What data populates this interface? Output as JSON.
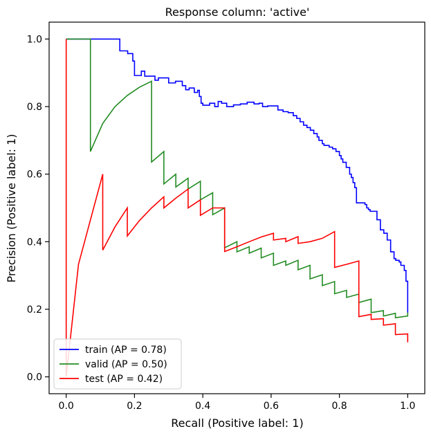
{
  "chart_data": {
    "type": "line",
    "title": "Response column: 'active'",
    "xlabel": "Recall (Positive label: 1)",
    "ylabel": "Precision (Positive label: 1)",
    "xlim": [
      -0.05,
      1.05
    ],
    "ylim": [
      -0.05,
      1.05
    ],
    "xticks": [
      0.0,
      0.2,
      0.4,
      0.6,
      0.8,
      1.0
    ],
    "yticks": [
      0.0,
      0.2,
      0.4,
      0.6,
      0.8,
      1.0
    ],
    "xtick_labels": [
      "0.0",
      "0.2",
      "0.4",
      "0.6",
      "0.8",
      "1.0"
    ],
    "ytick_labels": [
      "0.0",
      "0.2",
      "0.4",
      "0.6",
      "0.8",
      "1.0"
    ],
    "grid": false,
    "legend_position": "lower-left",
    "series": [
      {
        "name": "train (AP = 0.78)",
        "color": "#0000ff",
        "points": [
          [
            0.0,
            1.0
          ],
          [
            0.157,
            1.0
          ],
          [
            0.157,
            0.965
          ],
          [
            0.18,
            0.965
          ],
          [
            0.18,
            0.957
          ],
          [
            0.195,
            0.957
          ],
          [
            0.195,
            0.935
          ],
          [
            0.2,
            0.935
          ],
          [
            0.2,
            0.892
          ],
          [
            0.22,
            0.892
          ],
          [
            0.22,
            0.905
          ],
          [
            0.23,
            0.905
          ],
          [
            0.23,
            0.89
          ],
          [
            0.26,
            0.89
          ],
          [
            0.26,
            0.878
          ],
          [
            0.27,
            0.878
          ],
          [
            0.27,
            0.885
          ],
          [
            0.3,
            0.885
          ],
          [
            0.3,
            0.87
          ],
          [
            0.32,
            0.87
          ],
          [
            0.32,
            0.875
          ],
          [
            0.34,
            0.875
          ],
          [
            0.34,
            0.862
          ],
          [
            0.35,
            0.862
          ],
          [
            0.35,
            0.85
          ],
          [
            0.36,
            0.85
          ],
          [
            0.36,
            0.855
          ],
          [
            0.375,
            0.855
          ],
          [
            0.375,
            0.842
          ],
          [
            0.385,
            0.842
          ],
          [
            0.385,
            0.848
          ],
          [
            0.39,
            0.848
          ],
          [
            0.39,
            0.83
          ],
          [
            0.395,
            0.83
          ],
          [
            0.395,
            0.81
          ],
          [
            0.4,
            0.81
          ],
          [
            0.4,
            0.804
          ],
          [
            0.42,
            0.804
          ],
          [
            0.42,
            0.81
          ],
          [
            0.435,
            0.81
          ],
          [
            0.435,
            0.8
          ],
          [
            0.445,
            0.8
          ],
          [
            0.445,
            0.815
          ],
          [
            0.455,
            0.815
          ],
          [
            0.455,
            0.81
          ],
          [
            0.47,
            0.81
          ],
          [
            0.47,
            0.8
          ],
          [
            0.49,
            0.8
          ],
          [
            0.49,
            0.805
          ],
          [
            0.51,
            0.805
          ],
          [
            0.51,
            0.808
          ],
          [
            0.53,
            0.808
          ],
          [
            0.53,
            0.813
          ],
          [
            0.55,
            0.813
          ],
          [
            0.55,
            0.808
          ],
          [
            0.565,
            0.808
          ],
          [
            0.565,
            0.81
          ],
          [
            0.575,
            0.81
          ],
          [
            0.575,
            0.8
          ],
          [
            0.59,
            0.8
          ],
          [
            0.59,
            0.802
          ],
          [
            0.62,
            0.802
          ],
          [
            0.62,
            0.79
          ],
          [
            0.635,
            0.79
          ],
          [
            0.635,
            0.785
          ],
          [
            0.65,
            0.785
          ],
          [
            0.65,
            0.782
          ],
          [
            0.665,
            0.782
          ],
          [
            0.665,
            0.773
          ],
          [
            0.675,
            0.773
          ],
          [
            0.675,
            0.765
          ],
          [
            0.685,
            0.765
          ],
          [
            0.685,
            0.755
          ],
          [
            0.695,
            0.755
          ],
          [
            0.695,
            0.745
          ],
          [
            0.705,
            0.745
          ],
          [
            0.705,
            0.738
          ],
          [
            0.715,
            0.738
          ],
          [
            0.715,
            0.73
          ],
          [
            0.725,
            0.73
          ],
          [
            0.725,
            0.72
          ],
          [
            0.735,
            0.72
          ],
          [
            0.735,
            0.71
          ],
          [
            0.74,
            0.71
          ],
          [
            0.74,
            0.7
          ],
          [
            0.75,
            0.7
          ],
          [
            0.75,
            0.69
          ],
          [
            0.755,
            0.69
          ],
          [
            0.755,
            0.685
          ],
          [
            0.77,
            0.685
          ],
          [
            0.77,
            0.68
          ],
          [
            0.78,
            0.68
          ],
          [
            0.78,
            0.675
          ],
          [
            0.79,
            0.675
          ],
          [
            0.79,
            0.667
          ],
          [
            0.8,
            0.667
          ],
          [
            0.8,
            0.655
          ],
          [
            0.805,
            0.655
          ],
          [
            0.805,
            0.645
          ],
          [
            0.81,
            0.645
          ],
          [
            0.81,
            0.635
          ],
          [
            0.82,
            0.635
          ],
          [
            0.82,
            0.62
          ],
          [
            0.83,
            0.62
          ],
          [
            0.83,
            0.6
          ],
          [
            0.835,
            0.6
          ],
          [
            0.835,
            0.59
          ],
          [
            0.84,
            0.59
          ],
          [
            0.84,
            0.575
          ],
          [
            0.845,
            0.575
          ],
          [
            0.845,
            0.56
          ],
          [
            0.85,
            0.56
          ],
          [
            0.85,
            0.515
          ],
          [
            0.875,
            0.515
          ],
          [
            0.875,
            0.51
          ],
          [
            0.88,
            0.51
          ],
          [
            0.88,
            0.5
          ],
          [
            0.885,
            0.5
          ],
          [
            0.885,
            0.495
          ],
          [
            0.89,
            0.495
          ],
          [
            0.89,
            0.49
          ],
          [
            0.91,
            0.49
          ],
          [
            0.91,
            0.465
          ],
          [
            0.92,
            0.465
          ],
          [
            0.92,
            0.435
          ],
          [
            0.93,
            0.435
          ],
          [
            0.93,
            0.425
          ],
          [
            0.94,
            0.425
          ],
          [
            0.94,
            0.405
          ],
          [
            0.95,
            0.405
          ],
          [
            0.95,
            0.37
          ],
          [
            0.96,
            0.37
          ],
          [
            0.96,
            0.35
          ],
          [
            0.965,
            0.35
          ],
          [
            0.965,
            0.345
          ],
          [
            0.975,
            0.345
          ],
          [
            0.975,
            0.34
          ],
          [
            0.98,
            0.34
          ],
          [
            0.98,
            0.33
          ],
          [
            0.99,
            0.33
          ],
          [
            0.99,
            0.315
          ],
          [
            0.995,
            0.315
          ],
          [
            0.995,
            0.283
          ],
          [
            1.0,
            0.283
          ],
          [
            1.0,
            0.19
          ]
        ]
      },
      {
        "name": "valid (AP = 0.50)",
        "color": "#228b22",
        "points": [
          [
            0.0,
            1.0
          ],
          [
            0.071,
            1.0
          ],
          [
            0.071,
            0.667
          ],
          [
            0.107,
            0.75
          ],
          [
            0.143,
            0.8
          ],
          [
            0.179,
            0.833
          ],
          [
            0.214,
            0.857
          ],
          [
            0.25,
            0.875
          ],
          [
            0.25,
            0.636
          ],
          [
            0.286,
            0.667
          ],
          [
            0.286,
            0.571
          ],
          [
            0.321,
            0.6
          ],
          [
            0.321,
            0.562
          ],
          [
            0.357,
            0.588
          ],
          [
            0.357,
            0.556
          ],
          [
            0.393,
            0.579
          ],
          [
            0.393,
            0.524
          ],
          [
            0.429,
            0.545
          ],
          [
            0.429,
            0.48
          ],
          [
            0.464,
            0.5
          ],
          [
            0.464,
            0.382
          ],
          [
            0.5,
            0.4
          ],
          [
            0.5,
            0.37
          ],
          [
            0.536,
            0.385
          ],
          [
            0.536,
            0.366
          ],
          [
            0.571,
            0.381
          ],
          [
            0.571,
            0.352
          ],
          [
            0.607,
            0.366
          ],
          [
            0.607,
            0.33
          ],
          [
            0.643,
            0.343
          ],
          [
            0.643,
            0.33
          ],
          [
            0.679,
            0.345
          ],
          [
            0.679,
            0.317
          ],
          [
            0.714,
            0.33
          ],
          [
            0.714,
            0.29
          ],
          [
            0.75,
            0.302
          ],
          [
            0.75,
            0.27
          ],
          [
            0.786,
            0.282
          ],
          [
            0.786,
            0.246
          ],
          [
            0.821,
            0.256
          ],
          [
            0.821,
            0.235
          ],
          [
            0.857,
            0.245
          ],
          [
            0.857,
            0.22
          ],
          [
            0.893,
            0.23
          ],
          [
            0.893,
            0.19
          ],
          [
            0.929,
            0.196
          ],
          [
            0.929,
            0.18
          ],
          [
            0.964,
            0.188
          ],
          [
            0.964,
            0.175
          ],
          [
            1.0,
            0.18
          ],
          [
            1.0,
            0.19
          ]
        ]
      },
      {
        "name": "test (AP = 0.42)",
        "color": "#ff0000",
        "points": [
          [
            0.0,
            0.0
          ],
          [
            0.0,
            1.0
          ],
          [
            0.0,
            0.0
          ],
          [
            0.036,
            0.333
          ],
          [
            0.107,
            0.6
          ],
          [
            0.107,
            0.375
          ],
          [
            0.143,
            0.444
          ],
          [
            0.179,
            0.5
          ],
          [
            0.179,
            0.417
          ],
          [
            0.214,
            0.462
          ],
          [
            0.25,
            0.5
          ],
          [
            0.286,
            0.533
          ],
          [
            0.286,
            0.5
          ],
          [
            0.321,
            0.529
          ],
          [
            0.357,
            0.556
          ],
          [
            0.357,
            0.5
          ],
          [
            0.393,
            0.524
          ],
          [
            0.393,
            0.478
          ],
          [
            0.429,
            0.5
          ],
          [
            0.464,
            0.5
          ],
          [
            0.464,
            0.371
          ],
          [
            0.5,
            0.385
          ],
          [
            0.536,
            0.4
          ],
          [
            0.571,
            0.414
          ],
          [
            0.607,
            0.425
          ],
          [
            0.607,
            0.405
          ],
          [
            0.643,
            0.41
          ],
          [
            0.643,
            0.4
          ],
          [
            0.679,
            0.415
          ],
          [
            0.679,
            0.395
          ],
          [
            0.714,
            0.4
          ],
          [
            0.75,
            0.41
          ],
          [
            0.786,
            0.43
          ],
          [
            0.786,
            0.324
          ],
          [
            0.821,
            0.333
          ],
          [
            0.857,
            0.343
          ],
          [
            0.857,
            0.178
          ],
          [
            0.893,
            0.185
          ],
          [
            0.893,
            0.17
          ],
          [
            0.929,
            0.172
          ],
          [
            0.929,
            0.153
          ],
          [
            0.964,
            0.157
          ],
          [
            0.964,
            0.125
          ],
          [
            1.0,
            0.127
          ],
          [
            1.0,
            0.102
          ]
        ]
      }
    ]
  }
}
